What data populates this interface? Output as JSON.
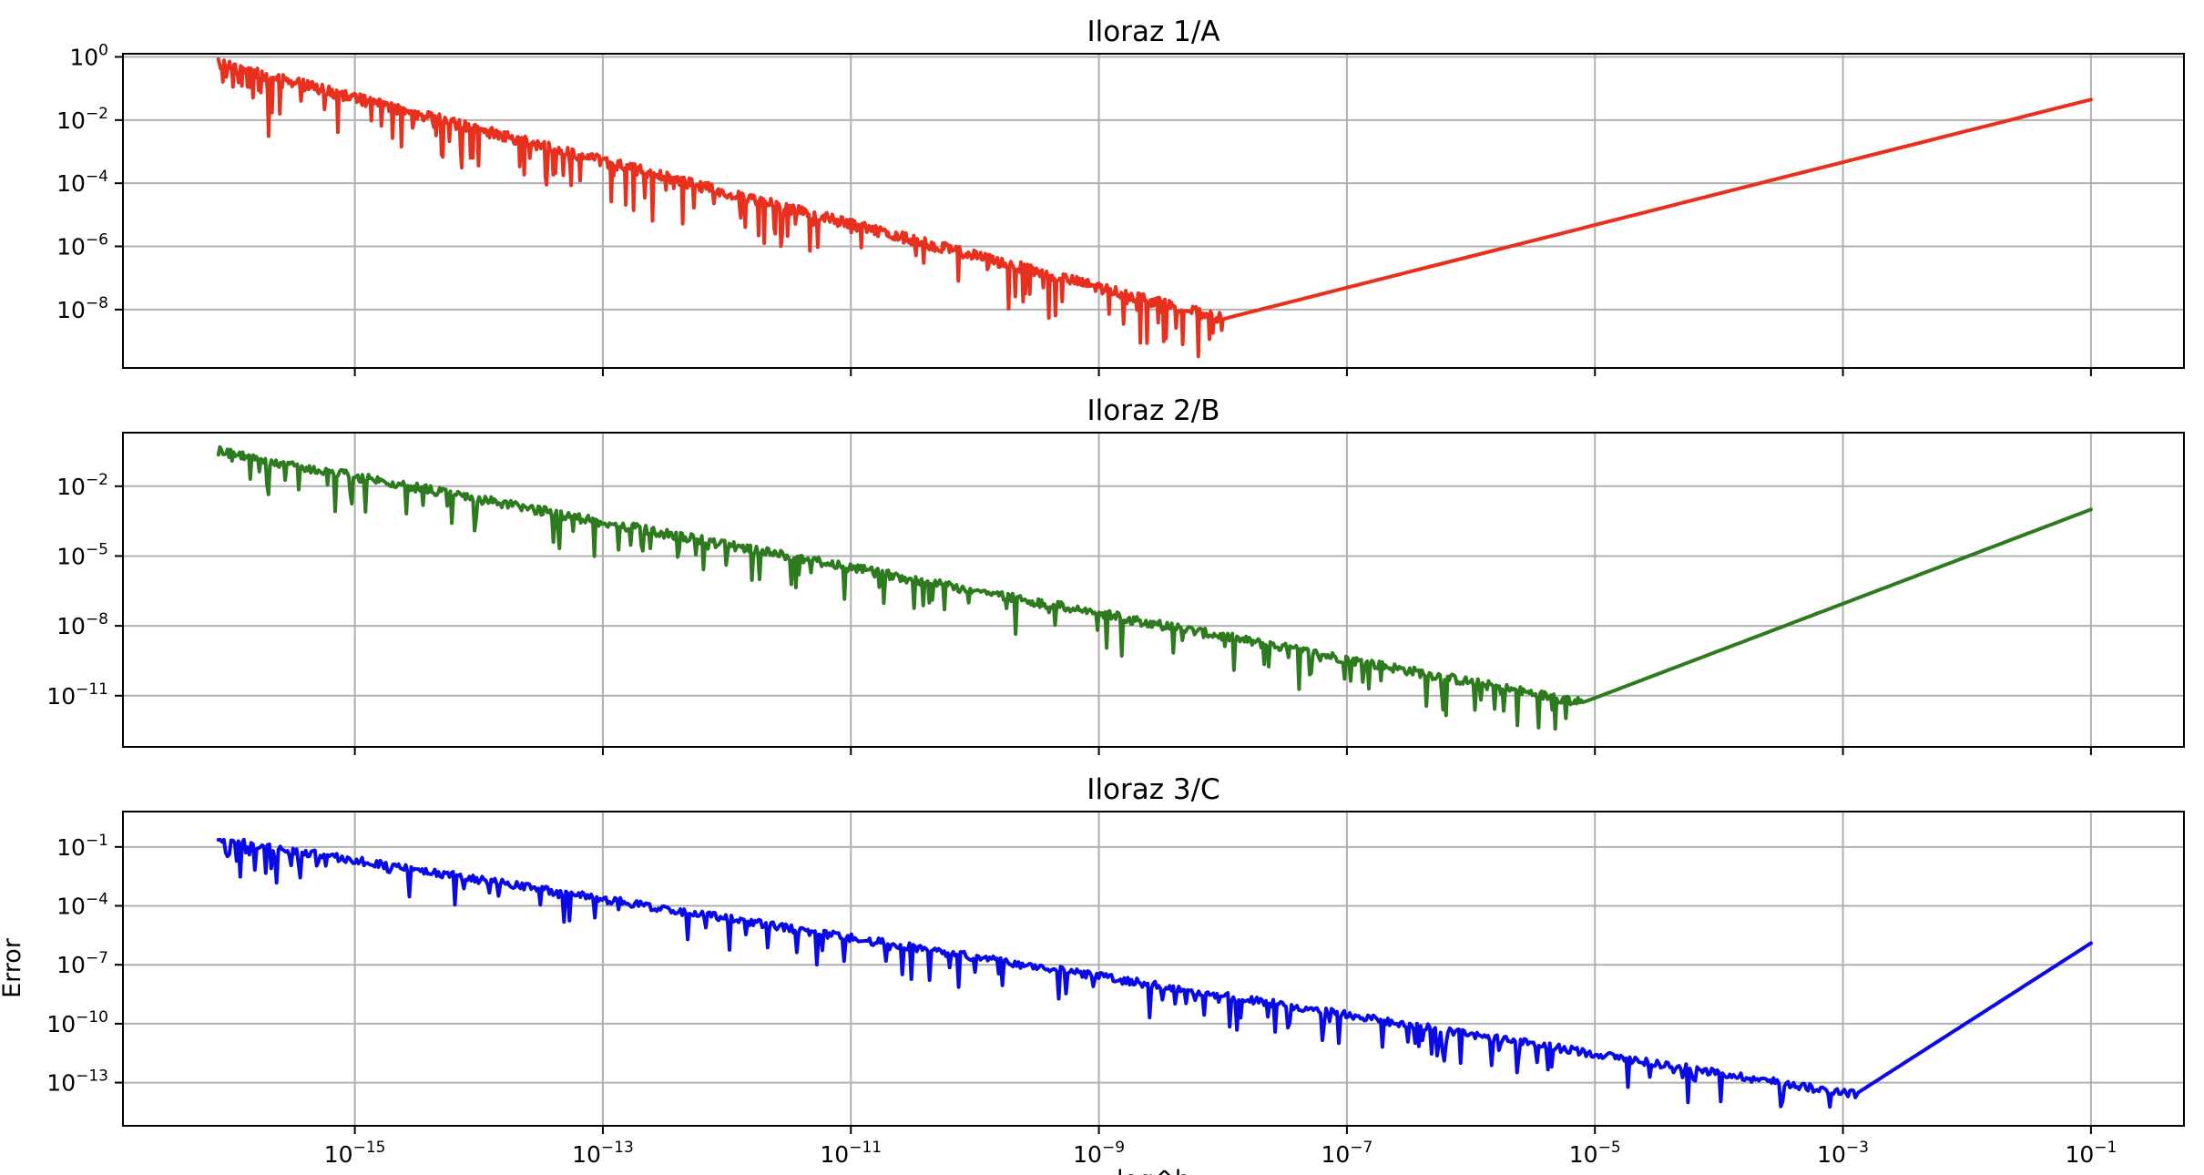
{
  "chart_data": {
    "type": "line",
    "xscale": "log",
    "yscale": "log",
    "xlabel": "log^h",
    "ylabel": "Error",
    "xlim_exp": [
      -16.87,
      -0.25
    ],
    "x_ticks_exp": [
      -15,
      -13,
      -11,
      -9,
      -7,
      -5,
      -3,
      -1
    ],
    "grid": true,
    "panels": [
      {
        "title": "Iloraz 1/A",
        "color": "#e8301f",
        "ylim_exp": [
          -9.85,
          0.1
        ],
        "y_ticks_exp": [
          0,
          -2,
          -4,
          -6,
          -8
        ],
        "x_start_exp": -16.1,
        "x_end_exp": -1,
        "y_start_exp": -0.2,
        "x_min_exp": -8.0,
        "y_min_exp": -8.3,
        "y_end_exp": -1.35,
        "noise_amp": 0.35,
        "dip_depth": 1.4
      },
      {
        "title": "Iloraz 2/B",
        "color": "#2e7a1e",
        "ylim_exp": [
          -13.2,
          0.3
        ],
        "y_ticks_exp": [
          -2,
          -5,
          -8,
          -11
        ],
        "x_start_exp": -16.1,
        "x_end_exp": -1,
        "y_start_exp": -0.5,
        "x_min_exp": -5.1,
        "y_min_exp": -11.3,
        "y_end_exp": -3.0,
        "noise_amp": 0.4,
        "dip_depth": 1.6
      },
      {
        "title": "Iloraz 3/C",
        "color": "#0a0ae6",
        "ylim_exp": [
          -15.2,
          0.8
        ],
        "y_ticks_exp": [
          -1,
          -4,
          -7,
          -10,
          -13
        ],
        "x_start_exp": -16.1,
        "x_end_exp": -1,
        "y_start_exp": -0.6,
        "x_min_exp": -2.9,
        "y_min_exp": -13.6,
        "y_end_exp": -5.9,
        "noise_amp": 0.4,
        "dip_depth": 1.7
      }
    ]
  }
}
